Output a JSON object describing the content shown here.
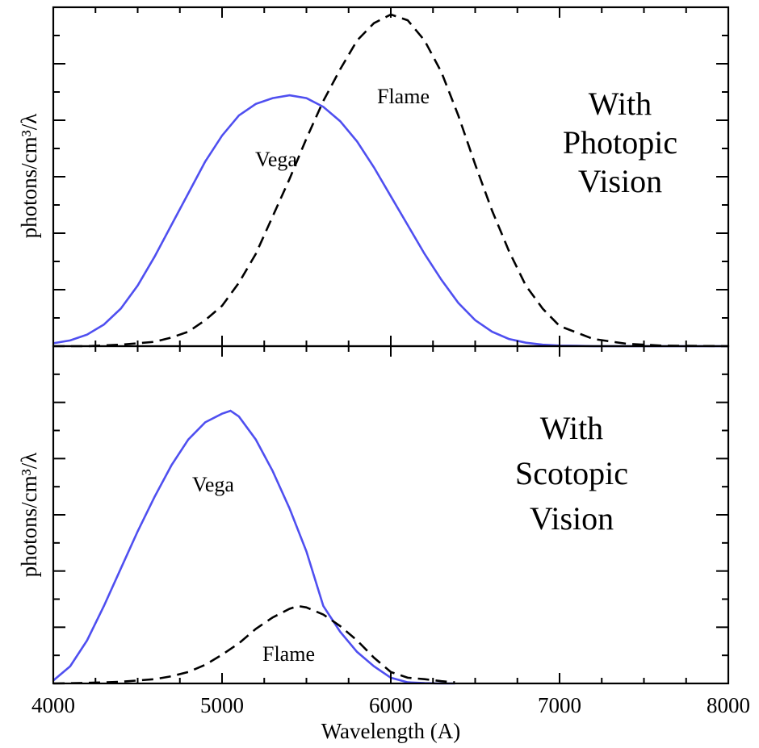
{
  "chart_data": [
    {
      "type": "line",
      "panel": "top",
      "xlabel": "",
      "ylabel": "photons/cm³/λ",
      "xlim": [
        4000,
        8000
      ],
      "ylim": [
        0,
        1.15
      ],
      "grid": false,
      "y_tick_count": 6,
      "annotations": {
        "vega": "Vega",
        "flame": "Flame",
        "title_lines": [
          "With",
          "Photopic",
          "Vision"
        ]
      },
      "series": [
        {
          "id": "vega",
          "color": "#4f4ff0",
          "dash": "solid",
          "x": [
            4000,
            4100,
            4200,
            4300,
            4400,
            4500,
            4600,
            4700,
            4800,
            4900,
            5000,
            5100,
            5200,
            5300,
            5400,
            5500,
            5600,
            5700,
            5800,
            5900,
            6000,
            6100,
            6200,
            6300,
            6400,
            6500,
            6600,
            6700,
            6800,
            6900,
            7000,
            7100,
            7200,
            7300,
            7400,
            7500,
            7600,
            7700,
            7800,
            7900,
            8000
          ],
          "y": [
            0.01,
            0.02,
            0.04,
            0.075,
            0.13,
            0.21,
            0.31,
            0.42,
            0.53,
            0.64,
            0.73,
            0.8,
            0.84,
            0.86,
            0.87,
            0.86,
            0.83,
            0.78,
            0.71,
            0.62,
            0.52,
            0.42,
            0.32,
            0.23,
            0.15,
            0.09,
            0.05,
            0.025,
            0.012,
            0.005,
            0.002,
            0.001,
            0,
            0,
            0,
            0,
            0,
            0,
            0,
            0,
            0
          ]
        },
        {
          "id": "flame",
          "color": "#000000",
          "dash": "dashed",
          "x": [
            4000,
            4200,
            4400,
            4600,
            4700,
            4800,
            4900,
            5000,
            5100,
            5200,
            5300,
            5400,
            5500,
            5600,
            5700,
            5800,
            5900,
            6000,
            6100,
            6200,
            6300,
            6400,
            6500,
            6600,
            6700,
            6800,
            6900,
            7000,
            7200,
            7400,
            7600,
            8000
          ],
          "y": [
            0,
            0,
            0.005,
            0.015,
            0.03,
            0.05,
            0.09,
            0.14,
            0.22,
            0.32,
            0.45,
            0.58,
            0.72,
            0.85,
            0.96,
            1.06,
            1.12,
            1.15,
            1.13,
            1.06,
            0.95,
            0.8,
            0.63,
            0.47,
            0.33,
            0.21,
            0.13,
            0.07,
            0.025,
            0.008,
            0.002,
            0
          ]
        }
      ]
    },
    {
      "type": "line",
      "panel": "bottom",
      "xlabel": "Wavelength (A)",
      "ylabel": "photons/cm³/λ",
      "xlim": [
        4000,
        8000
      ],
      "ylim": [
        0,
        1.15
      ],
      "xticks": [
        4000,
        5000,
        6000,
        7000,
        8000
      ],
      "grid": false,
      "y_tick_count": 6,
      "annotations": {
        "vega": "Vega",
        "flame": "Flame",
        "title_lines": [
          "With",
          "Scotopic",
          "Vision"
        ]
      },
      "series": [
        {
          "id": "vega",
          "color": "#4f4ff0",
          "dash": "solid",
          "x": [
            4000,
            4100,
            4200,
            4300,
            4400,
            4500,
            4600,
            4700,
            4800,
            4900,
            5000,
            5050,
            5100,
            5200,
            5300,
            5400,
            5500,
            5600,
            5700,
            5800,
            5900,
            6000,
            6100,
            6200,
            6300,
            6350,
            6380
          ],
          "y": [
            0.01,
            0.06,
            0.15,
            0.27,
            0.4,
            0.53,
            0.65,
            0.76,
            0.85,
            0.91,
            0.94,
            0.95,
            0.93,
            0.85,
            0.74,
            0.61,
            0.46,
            0.27,
            0.18,
            0.11,
            0.06,
            0.02,
            0.004,
            0.001,
            0,
            0,
            0
          ]
        },
        {
          "id": "flame",
          "color": "#000000",
          "dash": "dashed",
          "x": [
            4000,
            4200,
            4400,
            4600,
            4700,
            4800,
            4900,
            5000,
            5100,
            5200,
            5300,
            5400,
            5450,
            5500,
            5600,
            5700,
            5800,
            5900,
            6000,
            6100,
            6200,
            6300,
            6350,
            6380
          ],
          "y": [
            0,
            0.002,
            0.006,
            0.015,
            0.025,
            0.04,
            0.065,
            0.1,
            0.14,
            0.19,
            0.23,
            0.26,
            0.27,
            0.265,
            0.24,
            0.2,
            0.15,
            0.09,
            0.04,
            0.02,
            0.015,
            0.008,
            0.005,
            0.004
          ]
        }
      ]
    }
  ]
}
